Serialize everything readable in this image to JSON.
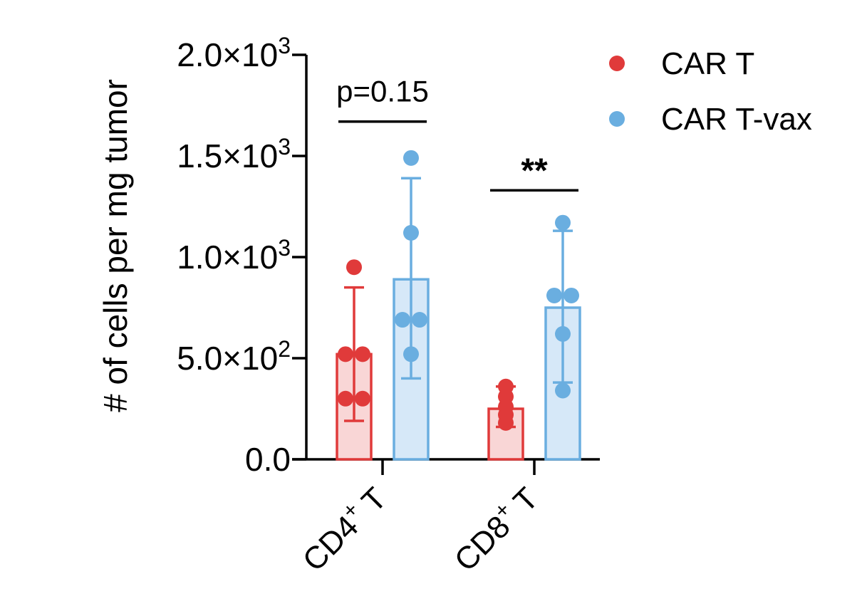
{
  "chart_data": {
    "type": "bar",
    "ylabel": "# of cells per mg tumor",
    "ylim": [
      0,
      2000
    ],
    "yticks": [
      {
        "value": 0,
        "mantissa": "0.0",
        "exp": ""
      },
      {
        "value": 500,
        "mantissa": "5.0×10",
        "exp": "2"
      },
      {
        "value": 1000,
        "mantissa": "1.0×10",
        "exp": "3"
      },
      {
        "value": 1500,
        "mantissa": "1.5×10",
        "exp": "3"
      },
      {
        "value": 2000,
        "mantissa": "2.0×10",
        "exp": "3"
      }
    ],
    "categories": [
      {
        "base": "CD4",
        "sup": "+",
        "suffix": " T"
      },
      {
        "base": "CD8",
        "sup": "+",
        "suffix": " T"
      }
    ],
    "series": [
      {
        "name": "CAR T",
        "color": "#e03a3a",
        "fill": "#f9d6d6",
        "values": [
          520,
          250
        ],
        "error": [
          [
            190,
            850
          ],
          [
            160,
            360
          ]
        ],
        "points": [
          [
            950,
            520,
            520,
            300,
            300
          ],
          [
            360,
            310,
            260,
            220,
            180
          ]
        ]
      },
      {
        "name": "CAR T-vax",
        "color": "#6aaee0",
        "fill": "#d6e8f8",
        "values": [
          890,
          750
        ],
        "error": [
          [
            400,
            1390
          ],
          [
            380,
            1130
          ]
        ],
        "points": [
          [
            1490,
            1120,
            690,
            690,
            520
          ],
          [
            1170,
            810,
            810,
            620,
            340
          ]
        ]
      }
    ],
    "annotations": [
      {
        "category": 0,
        "text": "p=0.15",
        "y": 1670,
        "style": "plain"
      },
      {
        "category": 1,
        "text": "**",
        "y": 1330,
        "style": "stars"
      }
    ],
    "legend_position": "top-right"
  }
}
